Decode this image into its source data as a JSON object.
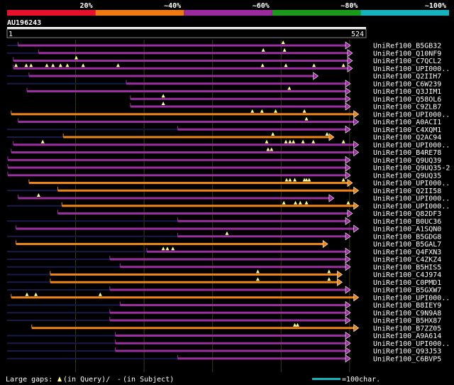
{
  "chart_data": {
    "type": "alignment",
    "query": {
      "id": "AU196243",
      "start": 1,
      "end": 524
    },
    "identity_legend": [
      {
        "label": "20%",
        "color": "#e8112d"
      },
      {
        "label": "~40%",
        "color": "#ee7a12"
      },
      {
        "label": "~60%",
        "color": "#9a2a9e"
      },
      {
        "label": "~80%",
        "color": "#1c9a1c"
      },
      {
        "label": "~100%",
        "color": "#17b3bd"
      }
    ],
    "footer": {
      "gaps_label": "Large gaps:",
      "query_text": "(in Query)/",
      "subject_text": "(in Subject)",
      "scale_text": "=100char."
    },
    "hits": [
      {
        "name": "UniRef100_B5GB32",
        "start": 16,
        "end": 494,
        "color": "purple",
        "gaps": [
          403
        ],
        "dim": [
          [
            0,
            16
          ]
        ]
      },
      {
        "name": "UniRef100_Q10NF9",
        "start": 46,
        "end": 497,
        "color": "purple",
        "gaps": [
          374,
          405
        ],
        "dim": [
          [
            0,
            46
          ]
        ]
      },
      {
        "name": "UniRef100_C7QCL2",
        "start": 9,
        "end": 497,
        "color": "purple",
        "gaps": [
          101
        ],
        "dim": []
      },
      {
        "name": "UniRef100_UPI000..",
        "start": 9,
        "end": 497,
        "color": "purple",
        "gaps": [
          13,
          28,
          35,
          58,
          67,
          78,
          88,
          111,
          162,
          373,
          407,
          448,
          491
        ],
        "dim": []
      },
      {
        "name": "UniRef100_Q2IIH7",
        "start": 32,
        "end": 447,
        "color": "purple",
        "gaps": [],
        "dim": [
          [
            0,
            32
          ]
        ]
      },
      {
        "name": "UniRef100_C6W239",
        "start": 174,
        "end": 494,
        "color": "purple",
        "gaps": [],
        "dim": [
          [
            0,
            174
          ]
        ]
      },
      {
        "name": "UniRef100_Q3JIM1",
        "start": 29,
        "end": 494,
        "color": "purple",
        "gaps": [
          412
        ],
        "dim": []
      },
      {
        "name": "UniRef100_Q58OL6",
        "start": 180,
        "end": 494,
        "color": "purple",
        "gaps": [
          228
        ],
        "dim": []
      },
      {
        "name": "UniRef100_C9ZLB7",
        "start": 180,
        "end": 494,
        "color": "purple",
        "gaps": [
          228
        ],
        "dim": []
      },
      {
        "name": "UniRef100_UPI000..",
        "start": 6,
        "end": 506,
        "color": "orange",
        "gaps": [
          358,
          372,
          392,
          434
        ],
        "dim": []
      },
      {
        "name": "UniRef100_A0ACI1",
        "start": 16,
        "end": 506,
        "color": "purple",
        "gaps": [
          437
        ],
        "dim": []
      },
      {
        "name": "UniRef100_C4XQM1",
        "start": 249,
        "end": 494,
        "color": "purple",
        "gaps": [],
        "dim": [
          [
            0,
            249
          ]
        ]
      },
      {
        "name": "UniRef100_Q2AC94",
        "start": 82,
        "end": 470,
        "color": "orange",
        "gaps": [
          388,
          467
        ],
        "dim": [
          [
            0,
            82
          ]
        ]
      },
      {
        "name": "UniRef100_UPI000..",
        "start": 9,
        "end": 506,
        "color": "purple",
        "gaps": [
          52,
          379,
          407,
          413,
          418,
          432,
          447,
          491
        ],
        "dim": []
      },
      {
        "name": "UniRef100_B4RE78",
        "start": 6,
        "end": 506,
        "color": "purple",
        "gaps": [
          381,
          386
        ],
        "dim": []
      },
      {
        "name": "UniRef100_Q9UQ39",
        "start": 1,
        "end": 494,
        "color": "purple",
        "gaps": [],
        "dim": []
      },
      {
        "name": "UniRef100_Q9UQ35-2",
        "start": 1,
        "end": 494,
        "color": "purple",
        "gaps": [],
        "dim": []
      },
      {
        "name": "UniRef100_Q9UQ35",
        "start": 1,
        "end": 494,
        "color": "purple",
        "gaps": [],
        "dim": []
      },
      {
        "name": "UniRef100_UPI000..",
        "start": 32,
        "end": 497,
        "color": "orange",
        "gaps": [
          408,
          413,
          420,
          434,
          437,
          441,
          491
        ],
        "dim": []
      },
      {
        "name": "UniRef100_Q2II58",
        "start": 74,
        "end": 506,
        "color": "orange",
        "gaps": [],
        "dim": [
          [
            0,
            74
          ]
        ]
      },
      {
        "name": "UniRef100_UPI000..",
        "start": 16,
        "end": 470,
        "color": "purple",
        "gaps": [
          46
        ],
        "dim": []
      },
      {
        "name": "UniRef100_UPI000..",
        "start": 80,
        "end": 506,
        "color": "orange",
        "gaps": [
          404,
          421,
          428,
          437,
          498
        ],
        "dim": [
          [
            0,
            80
          ]
        ]
      },
      {
        "name": "UniRef100_Q82DF3",
        "start": 74,
        "end": 497,
        "color": "purple",
        "gaps": [],
        "dim": []
      },
      {
        "name": "UniRef100_B0UC36",
        "start": 249,
        "end": 494,
        "color": "purple",
        "gaps": [],
        "dim": [
          [
            0,
            249
          ]
        ]
      },
      {
        "name": "UniRef100_A1SQN0",
        "start": 13,
        "end": 506,
        "color": "purple",
        "gaps": [],
        "dim": []
      },
      {
        "name": "UniRef100_B5GDG8",
        "start": 249,
        "end": 494,
        "color": "purple",
        "gaps": [
          321
        ],
        "dim": [
          [
            0,
            249
          ]
        ]
      },
      {
        "name": "UniRef100_B5GAL7",
        "start": 13,
        "end": 461,
        "color": "orange",
        "gaps": [],
        "dim": []
      },
      {
        "name": "UniRef100_Q4FXN3",
        "start": 204,
        "end": 494,
        "color": "purple",
        "gaps": [
          228,
          234,
          242
        ],
        "dim": [
          [
            0,
            204
          ]
        ]
      },
      {
        "name": "UniRef100_C4ZKZ4",
        "start": 150,
        "end": 494,
        "color": "purple",
        "gaps": [],
        "dim": [
          [
            0,
            150
          ]
        ]
      },
      {
        "name": "UniRef100_B5HIS5",
        "start": 165,
        "end": 494,
        "color": "purple",
        "gaps": [],
        "dim": [
          [
            0,
            165
          ]
        ]
      },
      {
        "name": "UniRef100_C4J974",
        "start": 63,
        "end": 482,
        "color": "orange",
        "gaps": [
          366,
          470
        ],
        "dim": [
          [
            0,
            63
          ]
        ]
      },
      {
        "name": "UniRef100_C0PMD1",
        "start": 63,
        "end": 482,
        "color": "orange",
        "gaps": [
          366,
          470
        ],
        "dim": [
          [
            0,
            63
          ]
        ]
      },
      {
        "name": "UniRef100_B5GXW7",
        "start": 150,
        "end": 494,
        "color": "purple",
        "gaps": [],
        "dim": [
          [
            0,
            150
          ]
        ]
      },
      {
        "name": "UniRef100_UPI000..",
        "start": 6,
        "end": 506,
        "color": "orange",
        "gaps": [
          29,
          42,
          136
        ],
        "dim": []
      },
      {
        "name": "UniRef100_B8IEY9",
        "start": 165,
        "end": 494,
        "color": "purple",
        "gaps": [],
        "dim": [
          [
            0,
            165
          ]
        ]
      },
      {
        "name": "UniRef100_C9N9A8",
        "start": 150,
        "end": 494,
        "color": "purple",
        "gaps": [],
        "dim": [
          [
            0,
            150
          ]
        ]
      },
      {
        "name": "UniRef100_B5HX87",
        "start": 150,
        "end": 494,
        "color": "purple",
        "gaps": [],
        "dim": [
          [
            0,
            150
          ]
        ]
      },
      {
        "name": "UniRef100_B7ZZ05",
        "start": 36,
        "end": 506,
        "color": "orange",
        "gaps": [
          420,
          424
        ],
        "dim": []
      },
      {
        "name": "UniRef100_A9A614",
        "start": 158,
        "end": 494,
        "color": "purple",
        "gaps": [],
        "dim": [
          [
            0,
            158
          ]
        ]
      },
      {
        "name": "UniRef100_UPI000..",
        "start": 158,
        "end": 494,
        "color": "purple",
        "gaps": [],
        "dim": [
          [
            0,
            158
          ]
        ]
      },
      {
        "name": "UniRef100_Q93J53",
        "start": 158,
        "end": 494,
        "color": "purple",
        "gaps": [],
        "dim": [
          [
            0,
            158
          ]
        ]
      },
      {
        "name": "UniRef100_C6BVP5",
        "start": 249,
        "end": 494,
        "color": "purple",
        "gaps": [],
        "dim": [
          [
            0,
            249
          ]
        ]
      }
    ],
    "colors": {
      "purple": "#9b2fa0",
      "orange": "#ee8415",
      "dim_line": "#1a1a4a",
      "gap_marker": "#ffff99",
      "scale_bar": "#17b3bd",
      "grid": "#3a3a1a"
    }
  }
}
